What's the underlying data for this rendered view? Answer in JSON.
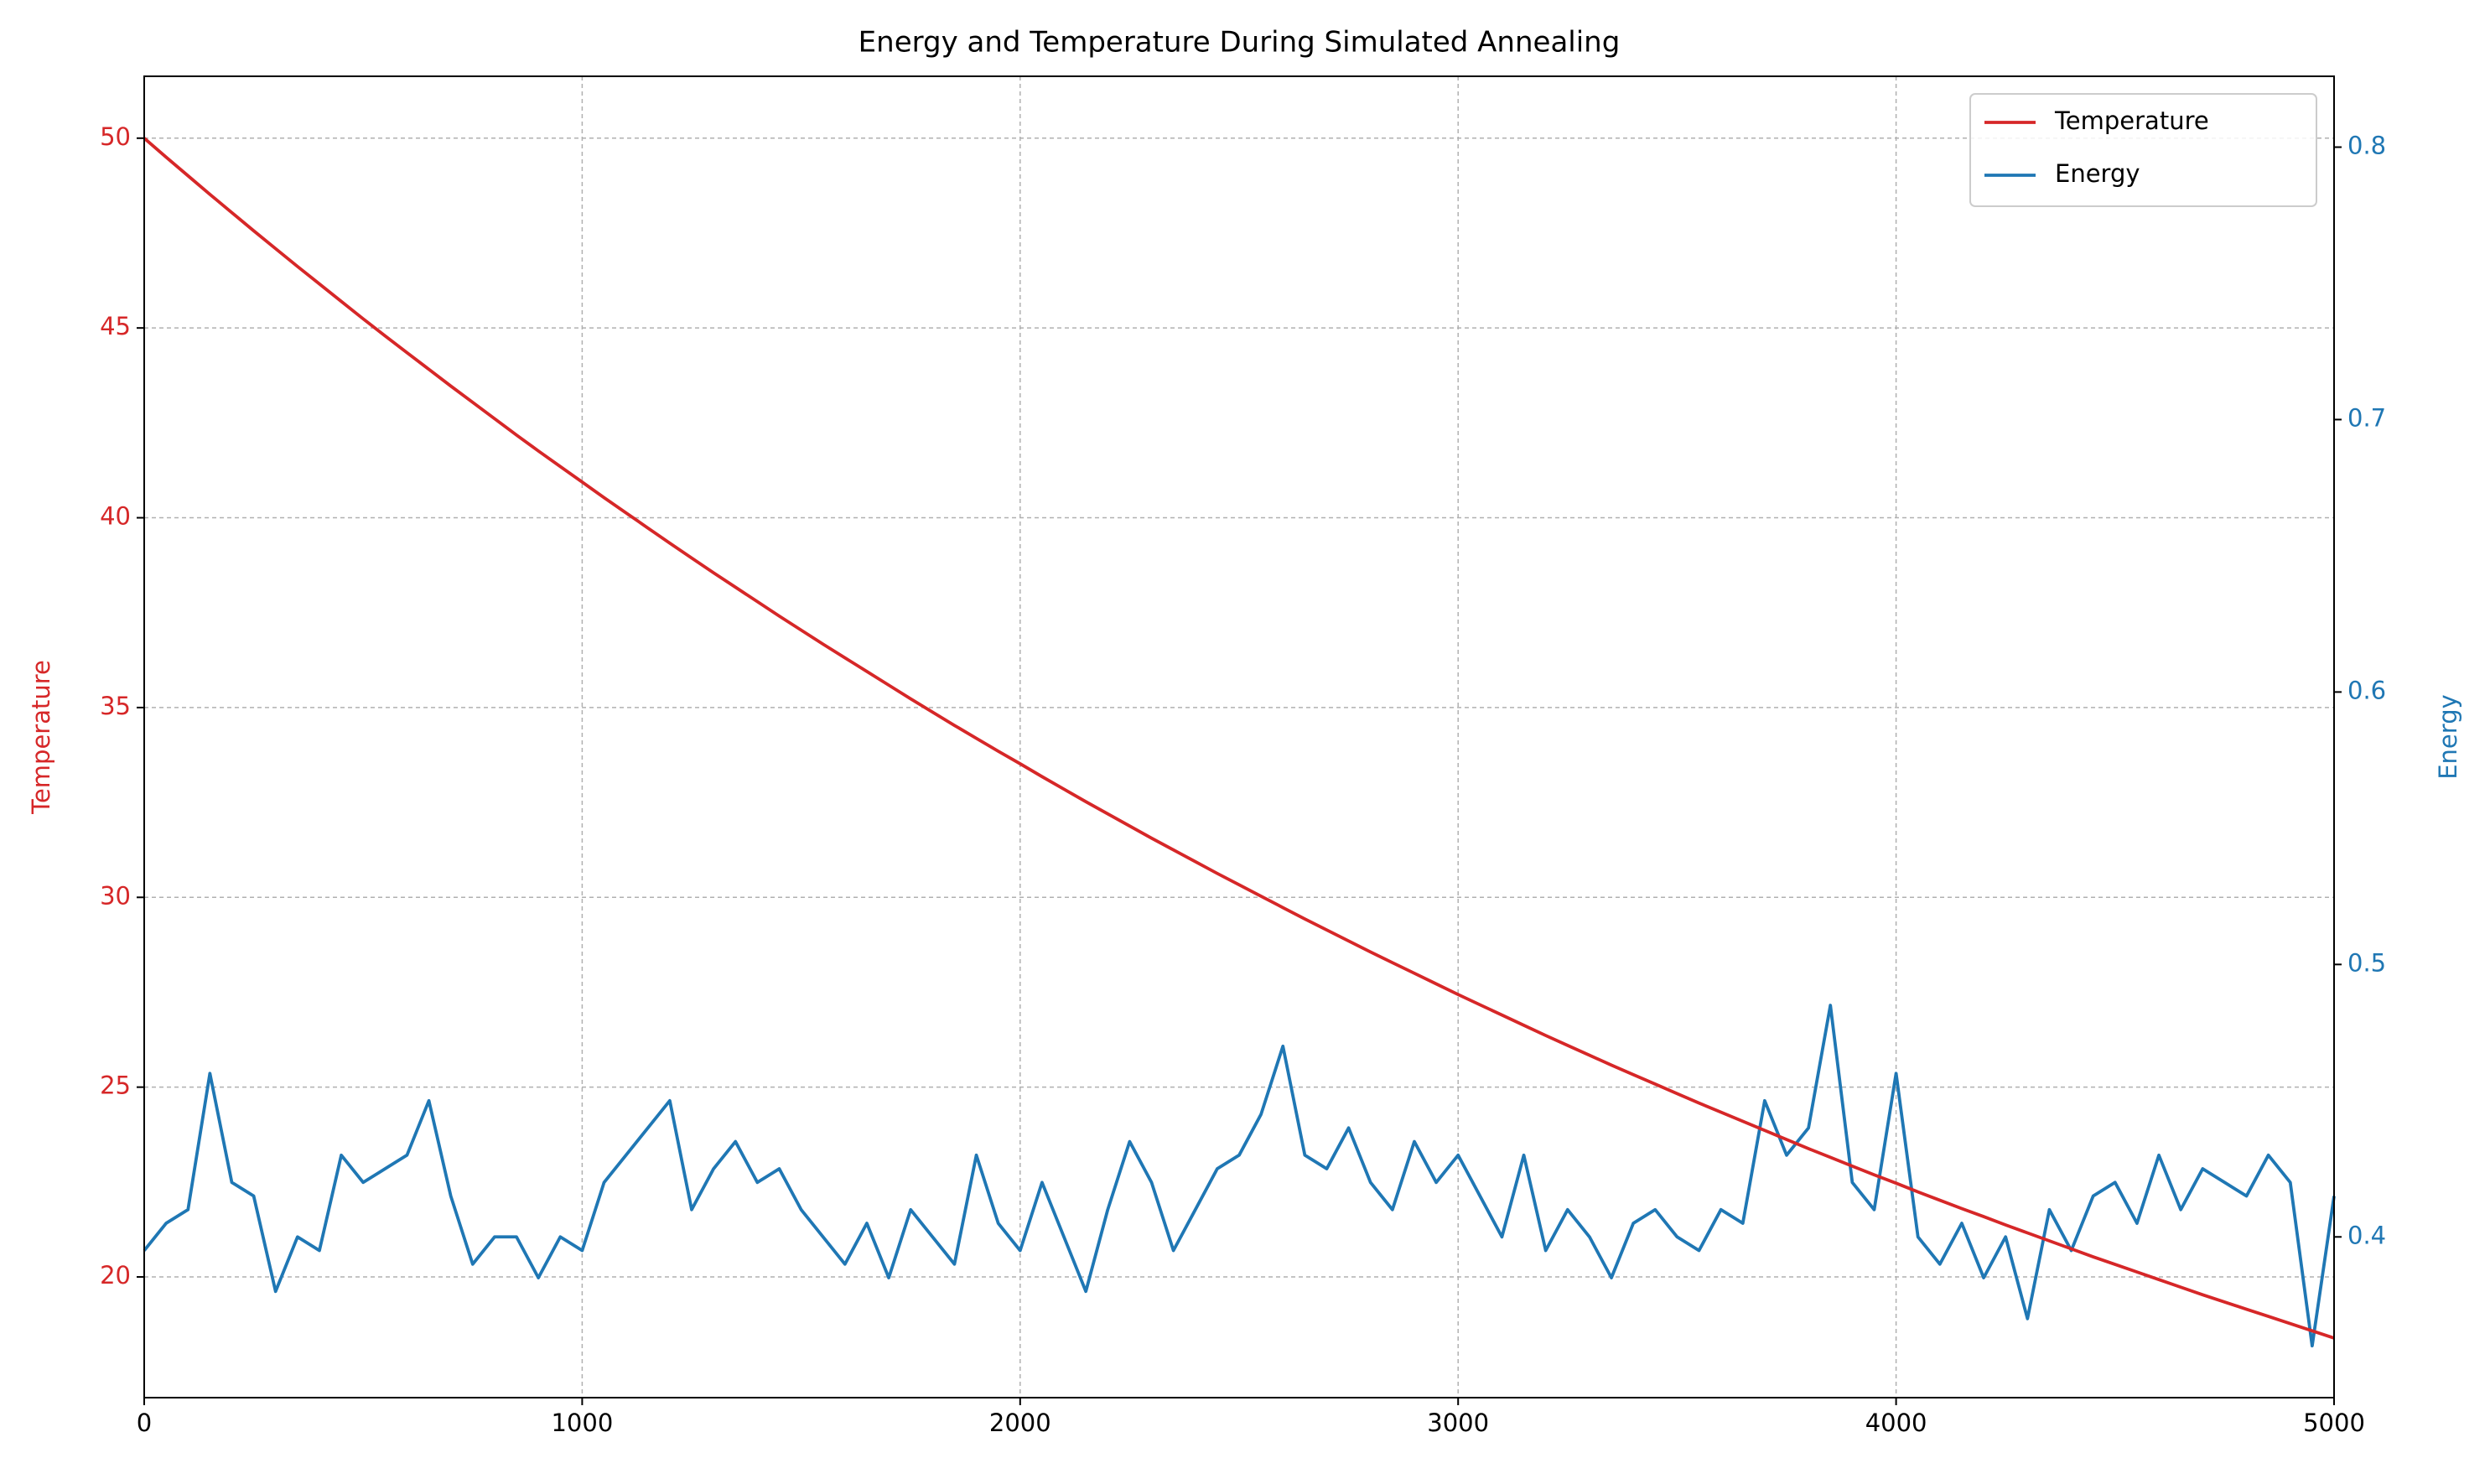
{
  "chart_data": {
    "type": "line",
    "title": "Energy and Temperature During Simulated Annealing",
    "ylabel": "Temperature",
    "y2label": "Energy",
    "x": [
      0,
      50,
      100,
      150,
      200,
      250,
      300,
      350,
      400,
      450,
      500,
      550,
      600,
      650,
      700,
      750,
      800,
      850,
      900,
      950,
      1000,
      1050,
      1100,
      1150,
      1200,
      1250,
      1300,
      1350,
      1400,
      1450,
      1500,
      1550,
      1600,
      1650,
      1700,
      1750,
      1800,
      1850,
      1900,
      1950,
      2000,
      2050,
      2100,
      2150,
      2200,
      2250,
      2300,
      2350,
      2400,
      2450,
      2500,
      2550,
      2600,
      2650,
      2700,
      2750,
      2800,
      2850,
      2900,
      2950,
      3000,
      3050,
      3100,
      3150,
      3200,
      3250,
      3300,
      3350,
      3400,
      3450,
      3500,
      3550,
      3600,
      3650,
      3700,
      3750,
      3800,
      3850,
      3900,
      3950,
      4000,
      4050,
      4100,
      4150,
      4200,
      4250,
      4300,
      4350,
      4400,
      4450,
      4500,
      4550,
      4600,
      4650,
      4700,
      4750,
      4800,
      4850,
      4900,
      4950,
      5000
    ],
    "series": [
      {
        "name": "Temperature",
        "color": "#d62728",
        "axis": "y",
        "values": [
          50.0,
          49.5,
          49.01,
          48.52,
          48.04,
          47.56,
          47.09,
          46.62,
          46.16,
          45.7,
          45.24,
          44.79,
          44.35,
          43.91,
          43.47,
          43.04,
          42.61,
          42.18,
          41.76,
          41.35,
          40.94,
          40.53,
          40.13,
          39.73,
          39.33,
          38.94,
          38.55,
          38.17,
          37.79,
          37.41,
          37.04,
          36.67,
          36.31,
          35.95,
          35.59,
          35.23,
          34.88,
          34.53,
          34.19,
          33.85,
          33.52,
          33.18,
          32.85,
          32.52,
          32.2,
          31.88,
          31.56,
          31.25,
          30.94,
          30.63,
          30.33,
          30.03,
          29.73,
          29.43,
          29.14,
          28.85,
          28.56,
          28.28,
          28.0,
          27.72,
          27.44,
          27.17,
          26.9,
          26.63,
          26.36,
          26.1,
          25.84,
          25.58,
          25.33,
          25.08,
          24.83,
          24.58,
          24.34,
          24.1,
          23.86,
          23.62,
          23.38,
          23.15,
          22.92,
          22.69,
          22.47,
          22.24,
          22.02,
          21.8,
          21.59,
          21.37,
          21.16,
          20.95,
          20.74,
          20.53,
          20.33,
          20.13,
          19.93,
          19.73,
          19.53,
          19.34,
          19.15,
          18.96,
          18.77,
          18.58,
          18.39
        ]
      },
      {
        "name": "Energy",
        "color": "#1f77b4",
        "axis": "y2",
        "values": [
          0.395,
          0.405,
          0.41,
          0.46,
          0.42,
          0.415,
          0.38,
          0.4,
          0.395,
          0.43,
          0.42,
          0.425,
          0.43,
          0.45,
          0.415,
          0.39,
          0.4,
          0.4,
          0.385,
          0.4,
          0.395,
          0.42,
          0.43,
          0.44,
          0.45,
          0.41,
          0.425,
          0.435,
          0.42,
          0.425,
          0.41,
          0.4,
          0.39,
          0.405,
          0.385,
          0.41,
          0.4,
          0.39,
          0.43,
          0.405,
          0.395,
          0.42,
          0.4,
          0.38,
          0.41,
          0.435,
          0.42,
          0.395,
          0.41,
          0.425,
          0.43,
          0.445,
          0.47,
          0.43,
          0.425,
          0.44,
          0.42,
          0.41,
          0.435,
          0.42,
          0.43,
          0.415,
          0.4,
          0.43,
          0.395,
          0.41,
          0.4,
          0.385,
          0.405,
          0.41,
          0.4,
          0.395,
          0.41,
          0.405,
          0.45,
          0.43,
          0.44,
          0.485,
          0.42,
          0.41,
          0.46,
          0.4,
          0.39,
          0.405,
          0.385,
          0.4,
          0.37,
          0.41,
          0.395,
          0.415,
          0.42,
          0.405,
          0.43,
          0.41,
          0.425,
          0.42,
          0.415,
          0.43,
          0.42,
          0.36,
          0.415
        ]
      }
    ],
    "xlim": [
      0,
      5000
    ],
    "xticks": [
      0,
      1000,
      2000,
      3000,
      4000,
      5000
    ],
    "ylim": [
      16.82,
      51.63
    ],
    "yticks": [
      20,
      25,
      30,
      35,
      40,
      45,
      50
    ],
    "y2lim": [
      0.341,
      0.826
    ],
    "y2ticks": [
      0.4,
      0.5,
      0.6,
      0.7,
      0.8
    ],
    "grid": true,
    "legend": "upper right"
  }
}
